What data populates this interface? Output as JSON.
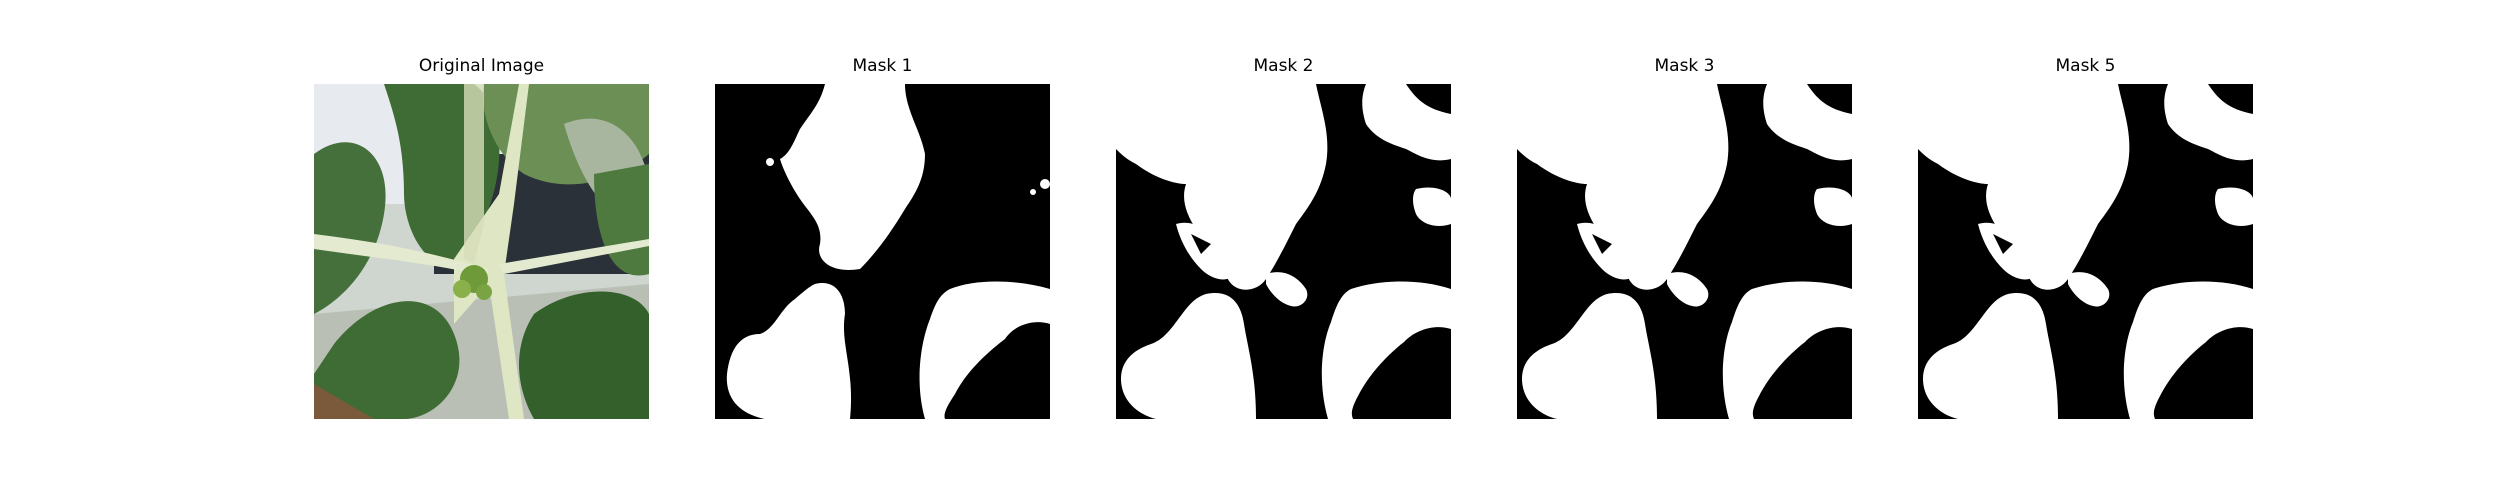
{
  "figure": {
    "panels": [
      {
        "title": "Original Image",
        "kind": "photo",
        "subject": "plant leaves with pale flower stalks"
      },
      {
        "title": "Mask 1",
        "kind": "binary-mask",
        "variant": "mask-1"
      },
      {
        "title": "Mask 2",
        "kind": "binary-mask",
        "variant": "mask-2"
      },
      {
        "title": "Mask 3",
        "kind": "binary-mask",
        "variant": "mask-2"
      },
      {
        "title": "Mask 5",
        "kind": "binary-mask",
        "variant": "mask-2"
      }
    ],
    "colors": {
      "mask_fg": "#ffffff",
      "mask_bg": "#000000",
      "leaf_dark": "#3f6b34",
      "leaf_mid": "#5d8a4a",
      "stem": "#dfe6c4",
      "sky": "#e7ebf0"
    }
  }
}
